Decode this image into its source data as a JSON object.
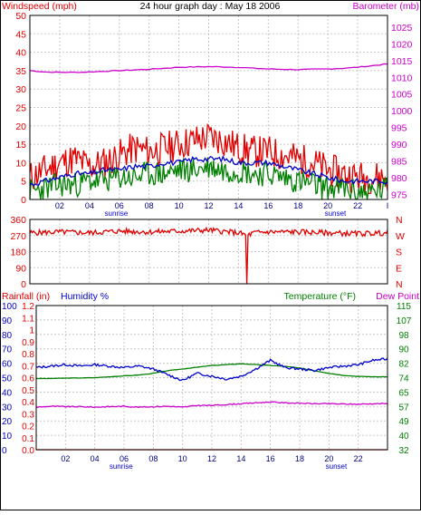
{
  "title": "24 hour graph day : May 18 2006",
  "colors": {
    "wind": "#e00000",
    "gust_dark": "#008000",
    "avg": "#0000cc",
    "baro": "#cc00cc",
    "dir": "#e00000",
    "humidity": "#0000cc",
    "temperature": "#008000",
    "dewpoint": "#cc00cc",
    "rain": "#e00000",
    "grid": "#c8c8c8"
  },
  "x_axis": {
    "labels": [
      "02",
      "04",
      "06",
      "08",
      "10",
      "12",
      "14",
      "16",
      "18",
      "20",
      "22",
      "I"
    ],
    "sunrise_label": "sunrise",
    "sunset_label": "sunset",
    "sunrise_hour": 5.8,
    "sunset_hour": 20.5
  },
  "chart_data": [
    {
      "type": "line",
      "name": "wind-barometer",
      "left_axis": {
        "label": "Windspeed (mph)",
        "ticks": [
          "50",
          "45",
          "40",
          "35",
          "30",
          "25",
          "20",
          "15",
          "10",
          "5",
          "0"
        ],
        "ylim": [
          0,
          50
        ]
      },
      "right_axis": {
        "label": "Barometer (mb)",
        "ticks": [
          "1025",
          "1020",
          "1015",
          "1010",
          "1005",
          "1000",
          "995",
          "990",
          "985",
          "980",
          "975"
        ],
        "ylim": [
          973.5,
          1028.5
        ]
      },
      "grid": true,
      "series": [
        {
          "key": "barometer",
          "axis": "right",
          "x": [
            0,
            1,
            2,
            3,
            4,
            5,
            6,
            7,
            8,
            9,
            10,
            11,
            12,
            13,
            14,
            15,
            16,
            17,
            18,
            19,
            20,
            21,
            22,
            23,
            24
          ],
          "y": [
            1012.0,
            1011.6,
            1011.5,
            1011.5,
            1011.6,
            1011.8,
            1012.0,
            1012.2,
            1012.4,
            1012.7,
            1013.0,
            1013.1,
            1013.2,
            1013.1,
            1013.0,
            1012.7,
            1012.5,
            1012.4,
            1012.3,
            1012.4,
            1012.5,
            1012.7,
            1013.0,
            1013.5,
            1014.0
          ]
        },
        {
          "key": "windspeed",
          "axis": "left",
          "x": [
            0,
            1,
            2,
            3,
            4,
            5,
            6,
            7,
            8,
            9,
            10,
            11,
            12,
            13,
            14,
            15,
            16,
            17,
            18,
            19,
            20,
            21,
            22,
            23,
            24
          ],
          "y": [
            6,
            8,
            10,
            11,
            9,
            10,
            12,
            14,
            13,
            14,
            15,
            16,
            17,
            16,
            14,
            13,
            13,
            12,
            11,
            10,
            8,
            7,
            6,
            6,
            6
          ]
        },
        {
          "key": "wind-average",
          "axis": "left",
          "x": [
            0,
            1,
            2,
            3,
            4,
            5,
            6,
            7,
            8,
            9,
            10,
            11,
            12,
            13,
            14,
            15,
            16,
            17,
            18,
            19,
            20,
            21,
            22,
            23,
            24
          ],
          "y": [
            4,
            5,
            6,
            7,
            7,
            8,
            8,
            9,
            9,
            10,
            10,
            11,
            11,
            11,
            10,
            10,
            10,
            9,
            8,
            7,
            6,
            5,
            5,
            5,
            5
          ]
        },
        {
          "key": "wind-low",
          "axis": "left",
          "x": [
            0,
            1,
            2,
            3,
            4,
            5,
            6,
            7,
            8,
            9,
            10,
            11,
            12,
            13,
            14,
            15,
            16,
            17,
            18,
            19,
            20,
            21,
            22,
            23,
            24
          ],
          "y": [
            2,
            3,
            4,
            4,
            5,
            5,
            6,
            6,
            7,
            7,
            8,
            8,
            9,
            8,
            8,
            7,
            7,
            6,
            5,
            4,
            3,
            3,
            2,
            2,
            3
          ]
        }
      ]
    },
    {
      "type": "line",
      "name": "wind-direction",
      "left_axis": {
        "ticks": [
          "360",
          "270",
          "180",
          "90",
          "0"
        ],
        "ylim": [
          0,
          360
        ]
      },
      "right_axis": {
        "ticks": [
          "N",
          "W",
          "S",
          "E",
          "N"
        ]
      },
      "grid": true,
      "series": [
        {
          "key": "direction",
          "x": [
            0,
            2,
            4,
            6,
            8,
            10,
            12,
            14,
            14.5,
            14.6,
            15,
            16,
            18,
            20,
            22,
            24
          ],
          "y": [
            285,
            290,
            285,
            295,
            290,
            295,
            300,
            285,
            0,
            270,
            285,
            290,
            290,
            285,
            280,
            285
          ]
        }
      ]
    },
    {
      "type": "line",
      "name": "rain-humidity-temperature",
      "left_axis_rain": {
        "label": "Rainfall (in)",
        "ticks": [
          "1.2",
          "1.1",
          "1",
          "0.9",
          "0.8",
          "0.7",
          "0.6",
          "0.5",
          "0.4",
          "0.3",
          "0.2",
          "0.1",
          "0.0"
        ],
        "ylim": [
          0,
          1.2
        ]
      },
      "left_axis_humidity": {
        "label": "Humidity %",
        "ticks": [
          "100",
          "90",
          "80",
          "70",
          "60",
          "50",
          "40",
          "30",
          "20",
          "10",
          "0"
        ],
        "ylim": [
          0,
          100
        ]
      },
      "right_axis": {
        "label": "Temperature (°F)",
        "label2": "Dew Point",
        "ticks": [
          "115",
          "107",
          "98",
          "90",
          "82",
          "74",
          "65",
          "57",
          "49",
          "40",
          "32"
        ],
        "ylim": [
          32,
          115
        ]
      },
      "grid": true,
      "series": [
        {
          "key": "humidity",
          "axis": "humidity",
          "x": [
            0,
            1,
            2,
            3,
            4,
            5,
            6,
            7,
            8,
            9,
            10,
            11,
            12,
            13,
            14,
            15,
            16,
            17,
            18,
            19,
            20,
            21,
            22,
            23,
            24
          ],
          "y": [
            57,
            58,
            59,
            58,
            59,
            58,
            57,
            58,
            56,
            52,
            48,
            53,
            51,
            49,
            51,
            56,
            62,
            57,
            56,
            55,
            57,
            58,
            59,
            62,
            63
          ]
        },
        {
          "key": "temperature",
          "axis": "right",
          "x": [
            0,
            1,
            2,
            3,
            4,
            5,
            6,
            7,
            8,
            9,
            10,
            11,
            12,
            13,
            14,
            15,
            16,
            17,
            18,
            19,
            20,
            21,
            22,
            23,
            24
          ],
          "y": [
            73.0,
            73.0,
            73.2,
            73.3,
            73.5,
            74.0,
            74.5,
            75.0,
            76.0,
            77.5,
            78.5,
            79.5,
            80.5,
            81.0,
            81.5,
            81.0,
            80.5,
            80.0,
            79.0,
            77.5,
            76.0,
            74.8,
            74.2,
            74.0,
            74.0
          ]
        },
        {
          "key": "dewpoint",
          "axis": "right",
          "x": [
            0,
            1,
            2,
            3,
            4,
            5,
            6,
            7,
            8,
            9,
            10,
            11,
            12,
            13,
            14,
            15,
            16,
            17,
            18,
            19,
            20,
            21,
            22,
            23,
            24
          ],
          "y": [
            56.5,
            57.0,
            56.8,
            56.8,
            56.5,
            56.8,
            57.0,
            56.5,
            56.8,
            57.0,
            56.5,
            57.5,
            57.5,
            58.0,
            58.5,
            59.0,
            59.5,
            59.0,
            58.8,
            58.5,
            58.5,
            58.3,
            58.2,
            58.5,
            58.5
          ]
        },
        {
          "key": "rainfall",
          "axis": "rain",
          "x": [
            0,
            24
          ],
          "y": [
            0.0,
            0.0
          ]
        }
      ]
    }
  ]
}
